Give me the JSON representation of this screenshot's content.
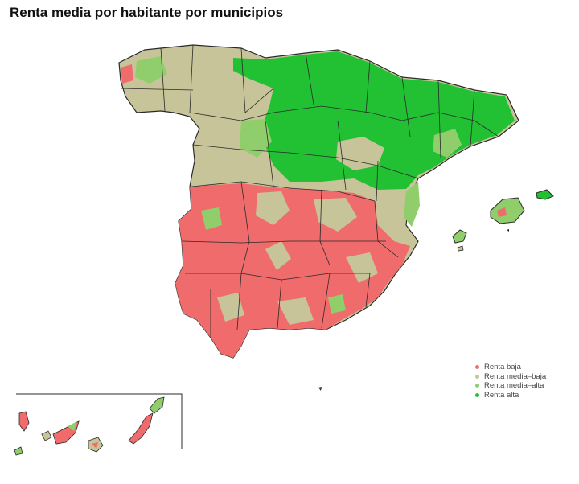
{
  "title": "Renta media por habitante por municipios",
  "legend": {
    "items": [
      {
        "label": "Renta baja",
        "color": "#f06b6b"
      },
      {
        "label": "Renta media–baja",
        "color": "#c8c49a"
      },
      {
        "label": "Renta media–alta",
        "color": "#8fce6a"
      },
      {
        "label": "Renta alta",
        "color": "#22c133"
      }
    ]
  },
  "colors": {
    "border": "#2a2a2a",
    "baja": "#f06b6b",
    "media_baja": "#c8c49a",
    "media_alta": "#8fce6a",
    "alta": "#22c133"
  }
}
